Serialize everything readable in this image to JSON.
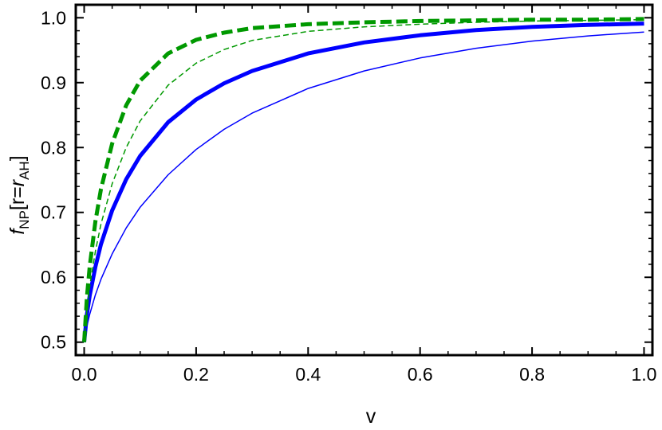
{
  "chart_data": {
    "type": "line",
    "title": "",
    "xlabel": "v",
    "ylabel": {
      "f": "f",
      "f_sub": "NP",
      "open": "[r=",
      "r": "r",
      "r_sub": "AH",
      "close": "]"
    },
    "xlim": [
      -0.015,
      1.015
    ],
    "ylim": [
      0.48,
      1.02
    ],
    "x_ticks": [
      0.0,
      0.2,
      0.4,
      0.6,
      0.8,
      1.0
    ],
    "x_tick_labels": [
      "0.0",
      "0.2",
      "0.4",
      "0.6",
      "0.8",
      "1.0"
    ],
    "y_ticks": [
      0.5,
      0.6,
      0.7,
      0.8,
      0.9,
      1.0
    ],
    "y_tick_labels": [
      "0.5",
      "0.6",
      "0.7",
      "0.8",
      "0.9",
      "1.0"
    ],
    "grid": false,
    "legend": "none",
    "series": [
      {
        "color": "#0000ff",
        "style": "solid-thin",
        "x": [
          0,
          0.005,
          0.01,
          0.02,
          0.03,
          0.05,
          0.075,
          0.1,
          0.15,
          0.2,
          0.25,
          0.3,
          0.4,
          0.5,
          0.6,
          0.7,
          0.8,
          0.9,
          1.0
        ],
        "y": [
          0.5,
          0.525,
          0.543,
          0.573,
          0.597,
          0.636,
          0.676,
          0.708,
          0.758,
          0.797,
          0.828,
          0.853,
          0.891,
          0.918,
          0.938,
          0.953,
          0.964,
          0.972,
          0.978
        ]
      },
      {
        "color": "#0000ff",
        "style": "solid-thick",
        "x": [
          0,
          0.005,
          0.01,
          0.02,
          0.03,
          0.05,
          0.075,
          0.1,
          0.15,
          0.2,
          0.25,
          0.3,
          0.4,
          0.5,
          0.6,
          0.7,
          0.8,
          0.9,
          1.0
        ],
        "y": [
          0.5,
          0.543,
          0.572,
          0.616,
          0.651,
          0.703,
          0.751,
          0.787,
          0.839,
          0.874,
          0.899,
          0.918,
          0.945,
          0.962,
          0.973,
          0.981,
          0.986,
          0.989,
          0.991
        ]
      },
      {
        "color": "#009900",
        "style": "dashed-thin",
        "x": [
          0,
          0.005,
          0.01,
          0.02,
          0.03,
          0.05,
          0.075,
          0.1,
          0.15,
          0.2,
          0.25,
          0.3,
          0.4,
          0.5,
          0.6,
          0.7,
          0.8,
          0.9,
          1.0
        ],
        "y": [
          0.5,
          0.55,
          0.586,
          0.64,
          0.682,
          0.744,
          0.8,
          0.841,
          0.896,
          0.93,
          0.951,
          0.965,
          0.979,
          0.986,
          0.99,
          0.993,
          0.995,
          0.996,
          0.997
        ]
      },
      {
        "color": "#009900",
        "style": "dashed-thick",
        "x": [
          0,
          0.005,
          0.01,
          0.02,
          0.03,
          0.05,
          0.075,
          0.1,
          0.15,
          0.2,
          0.25,
          0.3,
          0.4,
          0.5,
          0.6,
          0.7,
          0.8,
          0.9,
          1.0
        ],
        "y": [
          0.5,
          0.57,
          0.617,
          0.686,
          0.736,
          0.806,
          0.865,
          0.903,
          0.945,
          0.966,
          0.977,
          0.984,
          0.99,
          0.993,
          0.995,
          0.996,
          0.997,
          0.997,
          0.998
        ]
      }
    ]
  }
}
